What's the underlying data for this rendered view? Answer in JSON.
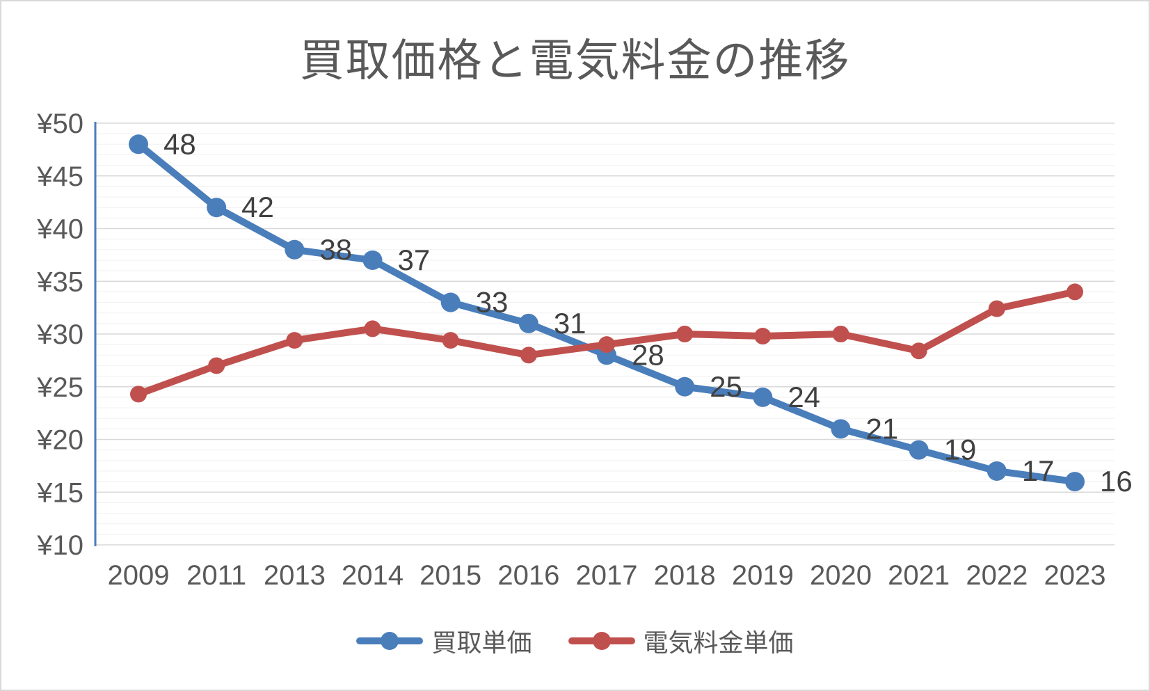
{
  "chart_data": {
    "type": "line",
    "title": "買取価格と電気料金の推移",
    "categories": [
      "2009",
      "2011",
      "2013",
      "2014",
      "2015",
      "2016",
      "2017",
      "2018",
      "2019",
      "2020",
      "2021",
      "2022",
      "2023"
    ],
    "series": [
      {
        "name": "買取単価",
        "color": "#4a7ebb",
        "values": [
          48,
          42,
          38,
          37,
          33,
          31,
          28,
          25,
          24,
          21,
          19,
          17,
          16
        ],
        "data_labels": [
          "48",
          "42",
          "38",
          "37",
          "33",
          "31",
          "28",
          "25",
          "24",
          "21",
          "19",
          "17",
          "16"
        ]
      },
      {
        "name": "電気料金単価",
        "color": "#c0504d",
        "values": [
          24.3,
          27.0,
          29.4,
          30.5,
          29.4,
          28.0,
          29.0,
          30.0,
          29.8,
          30.0,
          28.4,
          32.4,
          34.0
        ],
        "data_labels": null
      }
    ],
    "y_axis": {
      "prefix": "¥",
      "min": 10,
      "max": 50,
      "major_step": 5,
      "minor_step": 1,
      "tick_labels": [
        "¥10",
        "¥15",
        "¥20",
        "¥25",
        "¥30",
        "¥35",
        "¥40",
        "¥45",
        "¥50"
      ]
    },
    "x_axis": {
      "tick_labels": [
        "2009",
        "2011",
        "2013",
        "2014",
        "2015",
        "2016",
        "2017",
        "2018",
        "2019",
        "2020",
        "2021",
        "2022",
        "2023"
      ]
    },
    "grid": {
      "major": true,
      "minor": true
    },
    "legend_position": "bottom",
    "colors": {
      "series1": "#4a7ebb",
      "series2": "#c0504d",
      "axis_line": "#4a7ebb",
      "major_grid": "#d9d9d9",
      "minor_grid": "#f2f2f2",
      "tick_text": "#595959",
      "title_text": "#595959",
      "data_label_text": "#404040"
    }
  }
}
